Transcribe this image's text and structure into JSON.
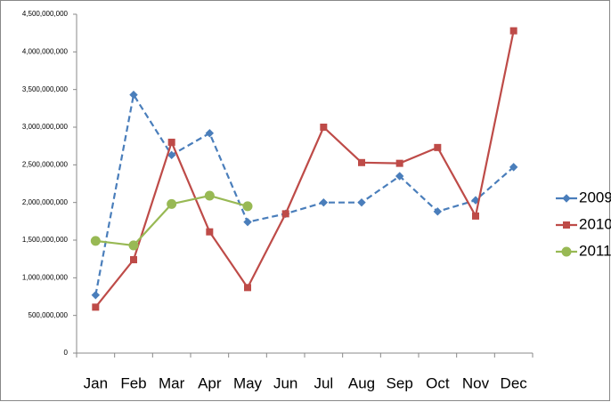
{
  "chart_data": {
    "type": "line",
    "categories": [
      "Jan",
      "Feb",
      "Mar",
      "Apr",
      "May",
      "Jun",
      "Jul",
      "Aug",
      "Sep",
      "Oct",
      "Nov",
      "Dec"
    ],
    "series": [
      {
        "name": "2009",
        "color": "#4a7ebb",
        "dash": true,
        "marker": "diamond",
        "values": [
          770000000,
          3430000000,
          2630000000,
          2920000000,
          1740000000,
          1850000000,
          2000000000,
          2000000000,
          2350000000,
          1880000000,
          2030000000,
          2470000000
        ]
      },
      {
        "name": "2010",
        "color": "#be4b48",
        "dash": false,
        "marker": "square",
        "values": [
          610000000,
          1240000000,
          2800000000,
          1610000000,
          870000000,
          1850000000,
          3000000000,
          2530000000,
          2520000000,
          2730000000,
          1820000000,
          4280000000
        ]
      },
      {
        "name": "2011",
        "color": "#98b954",
        "dash": false,
        "marker": "circle",
        "values": [
          1490000000,
          1430000000,
          1980000000,
          2090000000,
          1950000000,
          null,
          null,
          null,
          null,
          null,
          null,
          null
        ]
      }
    ],
    "ylim": [
      0,
      4500000000
    ],
    "yticks": [
      0,
      {
        "value": 500000000,
        "label": "500,000,000"
      },
      {
        "value": 1000000000,
        "label": "1,000,000,000"
      },
      {
        "value": 1500000000,
        "label": "1,500,000,000"
      },
      {
        "value": 2000000000,
        "label": "2,000,000,000"
      },
      {
        "value": 2500000000,
        "label": "2,500,000,000"
      },
      {
        "value": 3000000000,
        "label": "3,000,000,000"
      },
      {
        "value": 3500000000,
        "label": "3,500,000,000"
      },
      {
        "value": 4000000000,
        "label": "4,000,000,000"
      },
      {
        "value": 4500000000,
        "label": "4,500,000,000"
      }
    ],
    "grid": false,
    "legend": "right"
  }
}
